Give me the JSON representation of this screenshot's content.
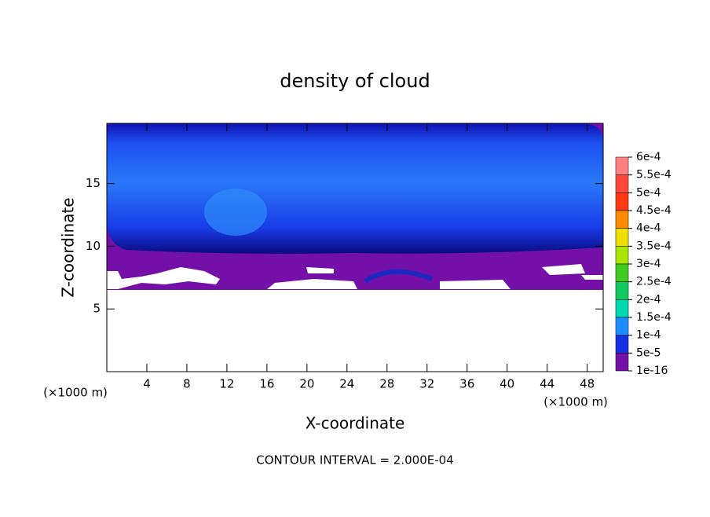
{
  "chart_data": {
    "type": "contour",
    "title": "density of cloud",
    "x_label": "X-coordinate",
    "y_label": "Z-coordinate",
    "x_unit": "(×1000 m)",
    "y_unit": "(×1000 m)",
    "footer": "CONTOUR INTERVAL = 2.000E-04",
    "xlim": [
      0,
      49.6
    ],
    "ylim": [
      0,
      19.8
    ],
    "xticks": [
      4,
      8,
      12,
      16,
      20,
      24,
      28,
      32,
      36,
      40,
      44,
      48
    ],
    "yticks": [
      5,
      10,
      15
    ],
    "colorbar": {
      "ticks": [
        {
          "value": 0.0006,
          "label": "6e-4"
        },
        {
          "value": 0.00055,
          "label": "5.5e-4"
        },
        {
          "value": 0.0005,
          "label": "5e-4"
        },
        {
          "value": 0.00045,
          "label": "4.5e-4"
        },
        {
          "value": 0.0004,
          "label": "4e-4"
        },
        {
          "value": 0.00035,
          "label": "3.5e-4"
        },
        {
          "value": 0.0003,
          "label": "3e-4"
        },
        {
          "value": 0.00025,
          "label": "2.5e-4"
        },
        {
          "value": 0.0002,
          "label": "2e-4"
        },
        {
          "value": 0.00015,
          "label": "1.5e-4"
        },
        {
          "value": 0.0001,
          "label": "1e-4"
        },
        {
          "value": 5e-05,
          "label": "5e-5"
        },
        {
          "value": 1e-16,
          "label": "1e-16"
        }
      ],
      "colors": [
        "#ff8080",
        "#ff4a3a",
        "#ff3a10",
        "#ff8a00",
        "#f0e000",
        "#a8e600",
        "#40cc20",
        "#10c860",
        "#00d8b0",
        "#1e8cff",
        "#1430e0",
        "#7410a8"
      ]
    }
  }
}
